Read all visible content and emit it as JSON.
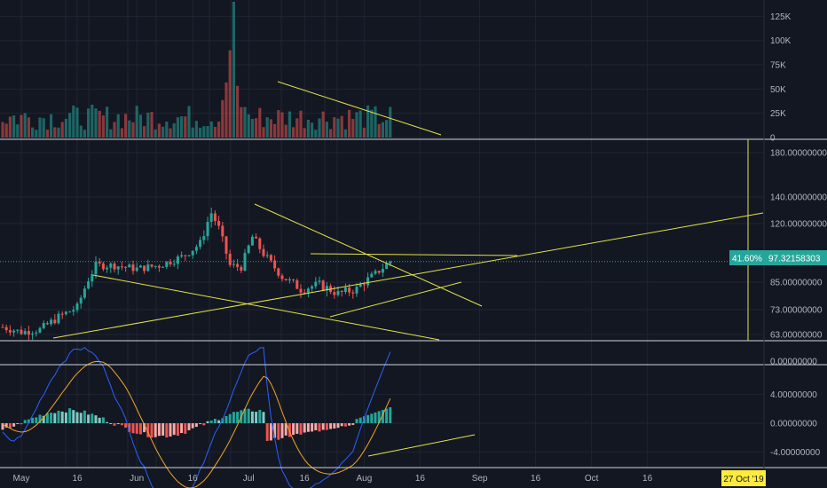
{
  "colors": {
    "background": "#131722",
    "grid": "#1f2433",
    "separator": "#d1d4dc",
    "up": "#26a69a",
    "down": "#ef5350",
    "trendline": "#e4e24a",
    "macd_line": "#2962ff",
    "signal_line": "#f5a623",
    "price_tag": "#26a69a",
    "date_tag": "#ffeb3b"
  },
  "price_tag": {
    "percent": "41.60%",
    "price": "97.32158303"
  },
  "date_tag": "27 Oct '19",
  "chart_data": [
    {
      "type": "bar",
      "panel": "volume",
      "y_ticks": [
        "125K",
        "100K",
        "75K",
        "50K",
        "25K",
        "0"
      ],
      "y_values": [
        125000,
        100000,
        75000,
        50000,
        25000,
        0
      ],
      "ylim": [
        0,
        140000
      ],
      "spike_value": 140000
    },
    {
      "type": "candlestick",
      "panel": "price",
      "y_ticks": [
        "180.00000000",
        "140.00000000",
        "120.00000000",
        "85.00000000",
        "73.00000000",
        "63.00000000",
        "0.00000000"
      ],
      "y_values": [
        180,
        140,
        120,
        85,
        73,
        63,
        0
      ],
      "last_price": 97.32158303,
      "high": 130,
      "low": 62,
      "start_price": 66,
      "end_price": 97.32158303
    },
    {
      "type": "line",
      "panel": "macd",
      "y_ticks": [
        "4.00000000",
        "0.00000000",
        "-4.00000000"
      ],
      "y_values": [
        4,
        0,
        -4
      ],
      "ylim": [
        -5,
        7
      ]
    }
  ],
  "x_axis": {
    "labels": [
      "May",
      "16",
      "Jun",
      "16",
      "Jul",
      "16",
      "Aug",
      "16",
      "Sep",
      "16",
      "Oct",
      "16"
    ],
    "start_date": "2019-04-26",
    "last_candle_date": "2019-08-08",
    "label_dates": [
      "2019-05-01",
      "2019-05-16",
      "2019-06-01",
      "2019-06-16",
      "2019-07-01",
      "2019-07-16",
      "2019-08-01",
      "2019-08-16",
      "2019-09-01",
      "2019-09-16",
      "2019-10-01",
      "2019-10-16"
    ]
  }
}
